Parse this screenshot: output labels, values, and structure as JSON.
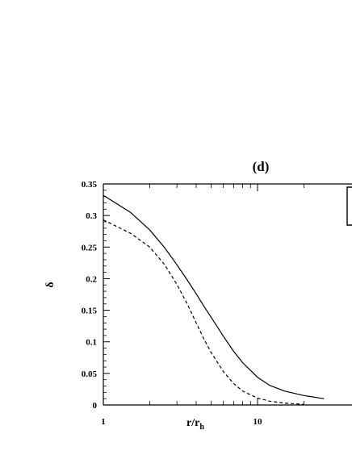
{
  "chart_data": {
    "type": "line",
    "title": "(d)",
    "xlabel_main": "r/r",
    "xlabel_sub": "h",
    "ylabel": "δ",
    "x_scale": "log",
    "xlim": [
      1,
      27
    ],
    "ylim": [
      0,
      0.35
    ],
    "x_ticks": [
      {
        "value": 1,
        "label": "1"
      },
      {
        "value": 10,
        "label": "10"
      }
    ],
    "y_ticks": [
      {
        "value": 0,
        "label": "0"
      },
      {
        "value": 0.05,
        "label": "0.05"
      },
      {
        "value": 0.1,
        "label": "0.1"
      },
      {
        "value": 0.15,
        "label": "0.15"
      },
      {
        "value": 0.2,
        "label": "0.2"
      },
      {
        "value": 0.25,
        "label": "0.25"
      },
      {
        "value": 0.3,
        "label": "0.3"
      },
      {
        "value": 0.35,
        "label": "0.35"
      }
    ],
    "grid": false,
    "legend": "top-right (partially cut off)",
    "series": [
      {
        "style": "solid",
        "x": [
          1,
          1.5,
          2,
          2.5,
          3,
          3.5,
          4,
          4.5,
          5,
          6,
          7,
          8,
          10,
          12,
          15,
          20,
          27
        ],
        "y": [
          0.332,
          0.305,
          0.277,
          0.249,
          0.222,
          0.198,
          0.176,
          0.156,
          0.139,
          0.109,
          0.085,
          0.067,
          0.044,
          0.031,
          0.022,
          0.015,
          0.01
        ]
      },
      {
        "style": "dashed",
        "x": [
          1,
          1.5,
          2,
          2.5,
          3,
          3.5,
          4,
          4.5,
          5,
          6,
          7,
          8,
          10,
          12,
          15,
          20
        ],
        "y": [
          0.293,
          0.272,
          0.25,
          0.222,
          0.191,
          0.16,
          0.13,
          0.104,
          0.083,
          0.053,
          0.034,
          0.022,
          0.011,
          0.006,
          0.003,
          0.001
        ]
      }
    ]
  }
}
